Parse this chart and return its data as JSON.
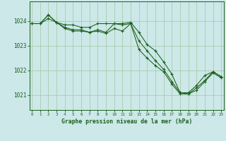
{
  "background_color": "#cce8e8",
  "grid_color": "#aaccaa",
  "line_color": "#1a5e1a",
  "xlim": [
    -0.3,
    23.3
  ],
  "ylim": [
    1020.4,
    1024.8
  ],
  "yticks": [
    1021,
    1022,
    1023,
    1024
  ],
  "xticks": [
    0,
    1,
    2,
    3,
    4,
    5,
    6,
    7,
    8,
    9,
    10,
    11,
    12,
    13,
    14,
    15,
    16,
    17,
    18,
    19,
    20,
    21,
    22,
    23
  ],
  "xlabel": "Graphe pression niveau de la mer (hPa)",
  "series": [
    [
      1023.9,
      1023.9,
      1024.25,
      1023.95,
      1023.85,
      1023.85,
      1023.75,
      1023.75,
      1023.9,
      1023.9,
      1023.9,
      1023.9,
      1023.95,
      1023.55,
      1023.05,
      1022.8,
      1022.35,
      1021.85,
      1021.1,
      1021.1,
      1021.4,
      1021.8,
      1021.95,
      1021.75
    ],
    [
      1023.9,
      1023.9,
      1024.25,
      1023.95,
      1023.75,
      1023.65,
      1023.65,
      1023.55,
      1023.65,
      1023.55,
      1023.9,
      1023.85,
      1023.9,
      1022.85,
      1022.5,
      1022.2,
      1021.95,
      1021.45,
      1021.05,
      1021.05,
      1021.3,
      1021.6,
      1021.95,
      1021.75
    ],
    [
      1023.9,
      1023.9,
      1024.1,
      1023.95,
      1023.7,
      1023.6,
      1023.6,
      1023.55,
      1023.6,
      1023.5,
      1023.7,
      1023.6,
      1023.9,
      1023.2,
      1022.8,
      1022.4,
      1022.05,
      1021.55,
      1021.1,
      1021.05,
      1021.2,
      1021.55,
      1021.9,
      1021.7
    ]
  ]
}
